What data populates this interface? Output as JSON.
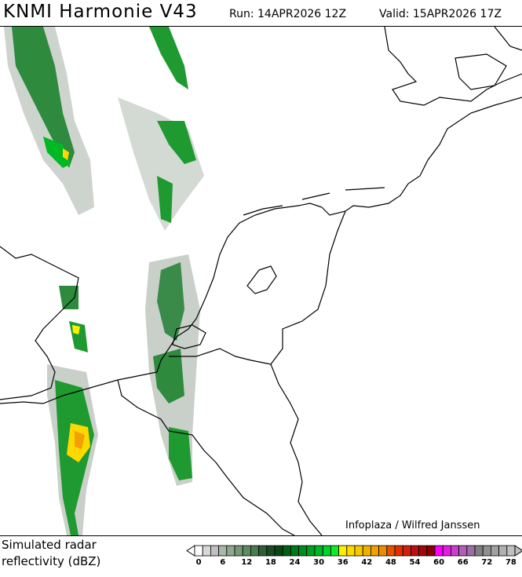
{
  "header": {
    "title": "KNMI Harmonie V43",
    "run": "Run: 14APR2026 12Z",
    "valid": "Valid: 15APR2026 17Z"
  },
  "map": {
    "credit": "Infoplaza / Wilfred Janssen"
  },
  "legend": {
    "caption_line1": "Simulated radar",
    "caption_line2": "reflectivity (dBZ)",
    "unit": "dBZ",
    "tick_labels": [
      "0",
      "6",
      "12",
      "18",
      "24",
      "30",
      "36",
      "42",
      "48",
      "54",
      "60",
      "66",
      "72",
      "78"
    ],
    "bins": [
      0,
      2,
      4,
      6,
      8,
      10,
      12,
      14,
      16,
      18,
      20,
      22,
      24,
      26,
      28,
      30,
      32,
      34,
      36,
      38,
      40,
      42,
      44,
      46,
      48,
      50,
      52,
      54,
      56,
      58,
      60,
      62,
      64,
      66,
      68,
      70,
      72,
      74,
      76,
      78
    ],
    "colors": [
      "#ffffff",
      "#d8d8d8",
      "#c0c0c0",
      "#a8b8a8",
      "#8fa890",
      "#789878",
      "#5e8a62",
      "#4a7a50",
      "#2e5e38",
      "#1a4a22",
      "#0c4414",
      "#006014",
      "#007818",
      "#008c1c",
      "#00a020",
      "#00b824",
      "#00d028",
      "#10e82a",
      "#ffee00",
      "#ffd800",
      "#f8c800",
      "#f0b000",
      "#f0a000",
      "#ec8c00",
      "#e85000",
      "#e03000",
      "#d02010",
      "#b81010",
      "#a00808",
      "#880000",
      "#ff00ff",
      "#e020e0",
      "#c840c8",
      "#b060b0",
      "#9a70a0",
      "#808080",
      "#909090",
      "#a0a0a0",
      "#b0b0b0",
      "#c0c0c0"
    ]
  }
}
